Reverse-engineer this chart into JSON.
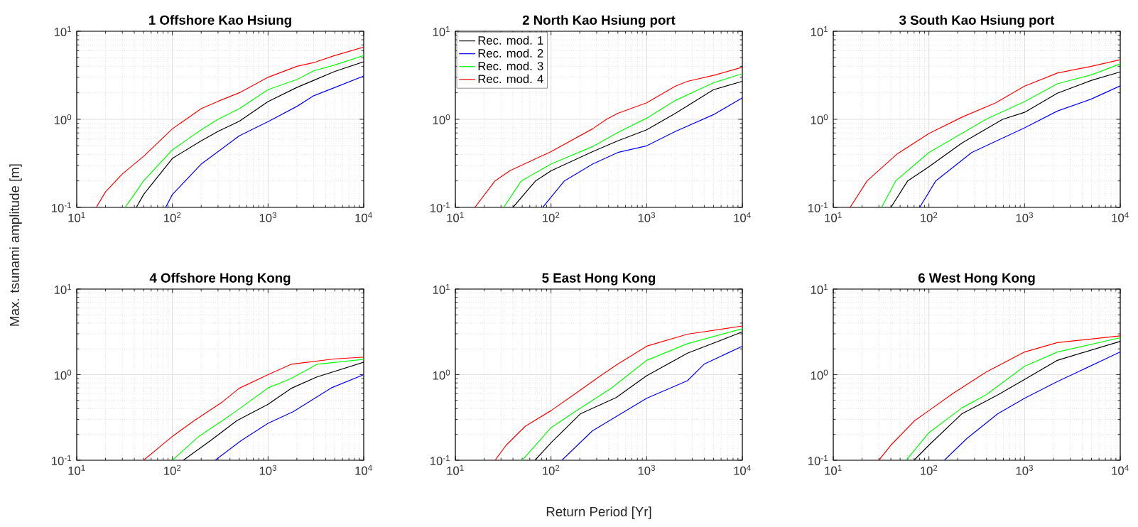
{
  "chart_data": [
    {
      "type": "line",
      "title": "1 Offshore Kao Hsiung",
      "ylabel": "Max. tsunami amplitude [m]",
      "log": "xy",
      "grid": true,
      "xlim": [
        10,
        10000
      ],
      "ylim": [
        0.1,
        10
      ],
      "xticks": [
        {
          "value": 10,
          "label": "10$^{1}$"
        },
        {
          "value": 100,
          "label": "10$^{2}$"
        },
        {
          "value": 1000,
          "label": "10$^{3}$"
        },
        {
          "value": 10000,
          "label": "10$^{4}$"
        }
      ],
      "yticks": [
        {
          "value": 0.1,
          "label": "10$^{-1}$"
        },
        {
          "value": 1,
          "label": "10$^{0}$"
        },
        {
          "value": 10,
          "label": "10$^{1}$"
        }
      ],
      "series": [
        {
          "color": "#000000",
          "x": [
            42,
            50,
            100,
            200,
            300,
            500,
            1000,
            2000,
            3000,
            5000,
            10000
          ],
          "values": [
            0.1,
            0.14,
            0.36,
            0.57,
            0.73,
            0.95,
            1.59,
            2.3,
            2.77,
            3.5,
            4.5
          ]
        },
        {
          "color": "#0000ff",
          "x": [
            85,
            100,
            200,
            300,
            500,
            1000,
            2000,
            3000,
            5000,
            10000
          ],
          "values": [
            0.1,
            0.14,
            0.31,
            0.43,
            0.65,
            0.94,
            1.4,
            1.85,
            2.3,
            3.1
          ]
        },
        {
          "color": "#00ff00",
          "x": [
            32,
            40,
            50,
            100,
            200,
            300,
            500,
            1000,
            2000,
            3000,
            5000,
            10000
          ],
          "values": [
            0.1,
            0.14,
            0.2,
            0.45,
            0.76,
            1.0,
            1.32,
            2.17,
            2.83,
            3.55,
            4.15,
            5.3
          ]
        },
        {
          "color": "#ff0000",
          "x": [
            16,
            20,
            30,
            50,
            100,
            200,
            300,
            500,
            1000,
            2000,
            3000,
            5000,
            10000
          ],
          "values": [
            0.1,
            0.15,
            0.24,
            0.38,
            0.78,
            1.32,
            1.6,
            2.0,
            3.0,
            4.0,
            4.4,
            5.3,
            6.6
          ]
        }
      ]
    },
    {
      "type": "line",
      "title": "2 North Kao Hsiung port",
      "log": "xy",
      "grid": true,
      "legend": "top left",
      "xlim": [
        10,
        10000
      ],
      "ylim": [
        0.1,
        10
      ],
      "xticks": [
        {
          "value": 10,
          "label": "10$^{1}$"
        },
        {
          "value": 100,
          "label": "10$^{2}$"
        },
        {
          "value": 1000,
          "label": "10$^{3}$"
        },
        {
          "value": 10000,
          "label": "10$^{4}$"
        }
      ],
      "yticks": [
        {
          "value": 0.1,
          "label": "10$^{-1}$"
        },
        {
          "value": 1,
          "label": "10$^{0}$"
        },
        {
          "value": 10,
          "label": "10$^{1}$"
        }
      ],
      "series": [
        {
          "name": "Rec. mod. 1",
          "color": "#000000",
          "x": [
            40,
            69,
            100,
            272,
            500,
            1000,
            2000,
            5000,
            10000
          ],
          "values": [
            0.1,
            0.2,
            0.26,
            0.43,
            0.57,
            0.76,
            1.17,
            2.17,
            2.7
          ]
        },
        {
          "name": "Rec. mod. 2",
          "color": "#0000ff",
          "x": [
            82,
            138,
            272,
            500,
            1000,
            2000,
            5000,
            10000
          ],
          "values": [
            0.1,
            0.2,
            0.31,
            0.42,
            0.5,
            0.73,
            1.13,
            1.75
          ]
        },
        {
          "name": "Rec. mod. 3",
          "color": "#00ff00",
          "x": [
            32,
            49,
            100,
            272,
            500,
            1000,
            2000,
            5000,
            10000
          ],
          "values": [
            0.1,
            0.2,
            0.31,
            0.49,
            0.71,
            1.03,
            1.64,
            2.6,
            3.3
          ]
        },
        {
          "name": "Rec. mod. 4",
          "color": "#ff0000",
          "x": [
            16,
            26,
            37,
            100,
            272,
            380,
            500,
            1000,
            2000,
            2670,
            5000,
            10000
          ],
          "values": [
            0.1,
            0.2,
            0.26,
            0.43,
            0.78,
            1.0,
            1.17,
            1.54,
            2.38,
            2.7,
            3.15,
            3.9
          ]
        }
      ]
    },
    {
      "type": "line",
      "title": "3 South Kao Hsiung port",
      "log": "xy",
      "grid": true,
      "xlim": [
        10,
        10000
      ],
      "ylim": [
        0.1,
        10
      ],
      "xticks": [
        {
          "value": 10,
          "label": "10$^{1}$"
        },
        {
          "value": 100,
          "label": "10$^{2}$"
        },
        {
          "value": 1000,
          "label": "10$^{3}$"
        },
        {
          "value": 10000,
          "label": "10$^{4}$"
        }
      ],
      "yticks": [
        {
          "value": 0.1,
          "label": "10$^{-1}$"
        },
        {
          "value": 1,
          "label": "10$^{0}$"
        },
        {
          "value": 10,
          "label": "10$^{1}$"
        }
      ],
      "series": [
        {
          "color": "#000000",
          "x": [
            40,
            60,
            100,
            222,
            590,
            1000,
            2200,
            5000,
            10000
          ],
          "values": [
            0.1,
            0.2,
            0.29,
            0.54,
            1.0,
            1.2,
            1.98,
            2.77,
            3.45
          ]
        },
        {
          "color": "#0000ff",
          "x": [
            80,
            118,
            280,
            1000,
            2200,
            5000,
            10000
          ],
          "values": [
            0.1,
            0.2,
            0.42,
            0.8,
            1.24,
            1.7,
            2.4
          ]
        },
        {
          "color": "#00ff00",
          "x": [
            32,
            45,
            100,
            395,
            1000,
            2200,
            5000,
            10000
          ],
          "values": [
            0.1,
            0.2,
            0.42,
            1.0,
            1.59,
            2.53,
            3.2,
            4.27
          ]
        },
        {
          "color": "#ff0000",
          "x": [
            15,
            22.6,
            46,
            100,
            222,
            500,
            1000,
            2200,
            5000,
            10000
          ],
          "values": [
            0.1,
            0.2,
            0.4,
            0.69,
            1.06,
            1.54,
            2.38,
            3.35,
            4.0,
            4.75
          ]
        }
      ]
    },
    {
      "type": "line",
      "title": "4 Offshore Hong Kong",
      "log": "xy",
      "grid": true,
      "xlim": [
        10,
        10000
      ],
      "ylim": [
        0.1,
        10
      ],
      "xticks": [
        {
          "value": 10,
          "label": "10$^{1}$"
        },
        {
          "value": 100,
          "label": "10$^{2}$"
        },
        {
          "value": 1000,
          "label": "10$^{3}$"
        },
        {
          "value": 10000,
          "label": "10$^{4}$"
        }
      ],
      "yticks": [
        {
          "value": 0.1,
          "label": "10$^{-1}$"
        },
        {
          "value": 1,
          "label": "10$^{0}$"
        },
        {
          "value": 10,
          "label": "10$^{1}$"
        }
      ],
      "series": [
        {
          "color": "#000000",
          "x": [
            130,
            251,
            472,
            1000,
            1740,
            3240,
            10000
          ],
          "values": [
            0.1,
            0.17,
            0.29,
            0.45,
            0.69,
            0.94,
            1.4
          ]
        },
        {
          "color": "#0000ff",
          "x": [
            280,
            525,
            1000,
            1840,
            4580,
            10000
          ],
          "values": [
            0.1,
            0.17,
            0.27,
            0.37,
            0.7,
            1.0
          ]
        },
        {
          "color": "#00ff00",
          "x": [
            100,
            189,
            333,
            472,
            1000,
            1740,
            3240,
            10000
          ],
          "values": [
            0.1,
            0.19,
            0.29,
            0.38,
            0.7,
            0.9,
            1.32,
            1.51
          ]
        },
        {
          "color": "#ff0000",
          "x": [
            50,
            100,
            169,
            333,
            497,
            1000,
            1740,
            5000,
            10000
          ],
          "values": [
            0.1,
            0.19,
            0.29,
            0.48,
            0.69,
            1.0,
            1.32,
            1.53,
            1.6
          ]
        }
      ]
    },
    {
      "type": "line",
      "title": "5 East Hong Kong",
      "xlabel": "Return Period [Yr]",
      "log": "xy",
      "grid": true,
      "xlim": [
        10,
        10000
      ],
      "ylim": [
        0.1,
        10
      ],
      "xticks": [
        {
          "value": 10,
          "label": "10$^{1}$"
        },
        {
          "value": 100,
          "label": "10$^{2}$"
        },
        {
          "value": 1000,
          "label": "10$^{3}$"
        },
        {
          "value": 10000,
          "label": "10$^{4}$"
        }
      ],
      "yticks": [
        {
          "value": 0.1,
          "label": "10$^{-1}$"
        },
        {
          "value": 1,
          "label": "10$^{0}$"
        },
        {
          "value": 10,
          "label": "10$^{1}$"
        }
      ],
      "series": [
        {
          "color": "#000000",
          "x": [
            68,
            100,
            204,
            480,
            1000,
            2670,
            10000
          ],
          "values": [
            0.1,
            0.16,
            0.35,
            0.54,
            0.97,
            1.78,
            3.16
          ]
        },
        {
          "color": "#0000ff",
          "x": [
            130,
            270,
            1000,
            2670,
            4000,
            10000
          ],
          "values": [
            0.1,
            0.22,
            0.53,
            0.85,
            1.33,
            2.15
          ]
        },
        {
          "color": "#00ff00",
          "x": [
            50,
            100,
            172,
            430,
            1000,
            2670,
            10000
          ],
          "values": [
            0.1,
            0.24,
            0.36,
            0.7,
            1.47,
            2.3,
            3.44
          ]
        },
        {
          "color": "#ff0000",
          "x": [
            26,
            34,
            54,
            100,
            172,
            342,
            500,
            1000,
            2670,
            10000
          ],
          "values": [
            0.1,
            0.15,
            0.25,
            0.38,
            0.58,
            1.0,
            1.33,
            2.15,
            2.97,
            3.7
          ]
        }
      ]
    },
    {
      "type": "line",
      "title": "6 West Hong Kong",
      "log": "xy",
      "grid": true,
      "xlim": [
        10,
        10000
      ],
      "ylim": [
        0.1,
        10
      ],
      "xticks": [
        {
          "value": 10,
          "label": "10$^{1}$"
        },
        {
          "value": 100,
          "label": "10$^{2}$"
        },
        {
          "value": 1000,
          "label": "10$^{3}$"
        },
        {
          "value": 10000,
          "label": "10$^{4}$"
        }
      ],
      "yticks": [
        {
          "value": 0.1,
          "label": "10$^{-1}$"
        },
        {
          "value": 1,
          "label": "10$^{0}$"
        },
        {
          "value": 10,
          "label": "10$^{1}$"
        }
      ],
      "series": [
        {
          "color": "#000000",
          "x": [
            70,
            100,
            222,
            525,
            1000,
            2200,
            10000
          ],
          "values": [
            0.1,
            0.15,
            0.35,
            0.58,
            0.88,
            1.47,
            2.45
          ]
        },
        {
          "color": "#0000ff",
          "x": [
            145,
            250,
            525,
            1000,
            2200,
            10000
          ],
          "values": [
            0.1,
            0.18,
            0.35,
            0.53,
            0.83,
            1.84
          ]
        },
        {
          "color": "#00ff00",
          "x": [
            58,
            100,
            222,
            395,
            1000,
            2200,
            10000
          ],
          "values": [
            0.1,
            0.21,
            0.41,
            0.58,
            1.25,
            1.84,
            2.7
          ]
        },
        {
          "color": "#ff0000",
          "x": [
            30,
            40,
            71,
            100,
            177,
            395,
            1000,
            2200,
            10000
          ],
          "values": [
            0.1,
            0.15,
            0.29,
            0.38,
            0.6,
            1.07,
            1.84,
            2.37,
            2.84
          ]
        }
      ]
    }
  ]
}
